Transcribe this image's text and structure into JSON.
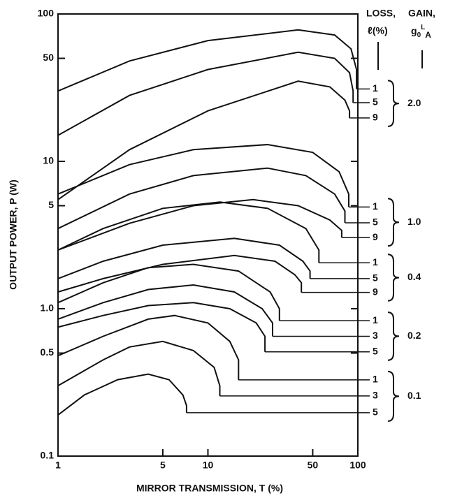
{
  "chart_data": {
    "type": "line",
    "xlabel": "MIRROR TRANSMISSION, T (%)",
    "ylabel": "OUTPUT POWER, P (W)",
    "loss_header": "LOSS,",
    "gain_header": "GAIN,",
    "loss_symbol": "ℓ(%)",
    "gain_symbol": [
      "g",
      "0",
      "L",
      "A"
    ],
    "log_x": true,
    "log_y": true,
    "color": "#111111",
    "xlim": [
      1,
      100
    ],
    "ylim": [
      0.1,
      100
    ],
    "xticks": [
      1,
      5,
      10,
      50,
      100
    ],
    "yticks": [
      0.1,
      0.5,
      {
        "value": 1,
        "label": "1.0"
      },
      5,
      10,
      50,
      100
    ],
    "groups": [
      {
        "label": "2.0",
        "series": [
          {
            "name": "1",
            "x": [
              1,
              3,
              10,
              40,
              70,
              90,
              98,
              98
            ],
            "values": [
              30,
              48,
              66,
              78,
              72,
              58,
              42,
              31
            ]
          },
          {
            "name": "5",
            "x": [
              1,
              3,
              10,
              40,
              70,
              88,
              93,
              93
            ],
            "values": [
              15,
              28,
              42,
              55,
              50,
              40,
              30,
              25
            ]
          },
          {
            "name": "9",
            "x": [
              1,
              3,
              10,
              40,
              65,
              82,
              88,
              88
            ],
            "values": [
              5.5,
              12,
              22,
              35,
              32,
              26,
              22,
              19.7
            ]
          }
        ]
      },
      {
        "label": "1.0",
        "series": [
          {
            "name": "1",
            "x": [
              1,
              3,
              8,
              25,
              50,
              75,
              87,
              87
            ],
            "values": [
              6,
              9.5,
              12,
              13,
              11.5,
              8.5,
              6,
              4.9
            ]
          },
          {
            "name": "5",
            "x": [
              1,
              3,
              8,
              25,
              45,
              70,
              82,
              82
            ],
            "values": [
              3.5,
              6,
              8,
              9,
              8,
              6,
              4.6,
              3.83
            ]
          },
          {
            "name": "9",
            "x": [
              1,
              3,
              8,
              20,
              40,
              65,
              78,
              78
            ],
            "values": [
              2.5,
              3.8,
              5,
              5.5,
              5,
              4,
              3.4,
              3.04
            ]
          }
        ]
      },
      {
        "label": "0.4",
        "series": [
          {
            "name": "1",
            "x": [
              1,
              2,
              5,
              12,
              25,
              45,
              55,
              55
            ],
            "values": [
              2.5,
              3.5,
              4.8,
              5.3,
              4.8,
              3.5,
              2.5,
              2.05
            ]
          },
          {
            "name": "5",
            "x": [
              1,
              2,
              5,
              15,
              30,
              43,
              48,
              48
            ],
            "values": [
              1.6,
              2.1,
              2.7,
              3,
              2.7,
              2.1,
              1.8,
              1.6
            ]
          },
          {
            "name": "9",
            "x": [
              1,
              2,
              5,
              15,
              28,
              38,
              42,
              42
            ],
            "values": [
              1.3,
              1.6,
              2,
              2.3,
              2.1,
              1.7,
              1.5,
              1.29
            ]
          }
        ]
      },
      {
        "label": "0.2",
        "series": [
          {
            "name": "1",
            "x": [
              1,
              2,
              4,
              8,
              16,
              26,
              30,
              30
            ],
            "values": [
              1.1,
              1.5,
              1.9,
              2,
              1.8,
              1.3,
              1,
              0.83
            ]
          },
          {
            "name": "3",
            "x": [
              1,
              2,
              4,
              8,
              15,
              23,
              27,
              27
            ],
            "values": [
              0.85,
              1.1,
              1.35,
              1.45,
              1.3,
              1,
              0.8,
              0.65
            ]
          },
          {
            "name": "5",
            "x": [
              1,
              2,
              4,
              8,
              14,
              21,
              24,
              24
            ],
            "values": [
              0.75,
              0.9,
              1.05,
              1.1,
              1,
              0.8,
              0.65,
              0.51
            ]
          }
        ]
      },
      {
        "label": "0.1",
        "series": [
          {
            "name": "1",
            "x": [
              1,
              2,
              4,
              6,
              10,
              14,
              16,
              16
            ],
            "values": [
              0.48,
              0.65,
              0.85,
              0.9,
              0.8,
              0.6,
              0.45,
              0.329
            ]
          },
          {
            "name": "3",
            "x": [
              1,
              2,
              3,
              5,
              8,
              11,
              12,
              12
            ],
            "values": [
              0.3,
              0.45,
              0.55,
              0.6,
              0.52,
              0.4,
              0.3,
              0.256
            ]
          },
          {
            "name": "5",
            "x": [
              1,
              1.5,
              2.5,
              4,
              5.5,
              6.8,
              7.2,
              7.2
            ],
            "values": [
              0.19,
              0.26,
              0.33,
              0.36,
              0.33,
              0.26,
              0.22,
              0.197
            ]
          }
        ]
      }
    ]
  }
}
